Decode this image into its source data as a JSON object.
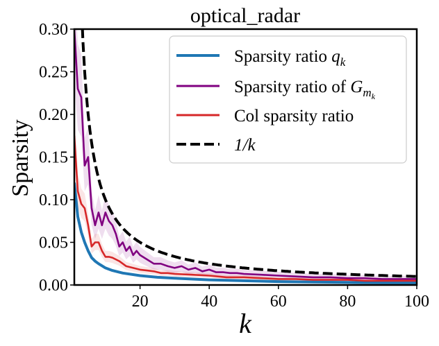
{
  "chart_data": {
    "type": "line",
    "title": "optical_radar",
    "xlabel": "k",
    "ylabel": "Sparsity",
    "xlim": [
      1,
      100
    ],
    "ylim": [
      0,
      0.3
    ],
    "xticks": [
      20,
      40,
      60,
      80,
      100
    ],
    "xtick_labels": [
      "20",
      "40",
      "60",
      "80",
      "100"
    ],
    "yticks": [
      0.0,
      0.05,
      0.1,
      0.15,
      0.2,
      0.25,
      0.3
    ],
    "ytick_labels": [
      "0.00",
      "0.05",
      "0.10",
      "0.15",
      "0.20",
      "0.25",
      "0.30"
    ],
    "grid": false,
    "legend": {
      "placement": "upper-right",
      "entries": [
        {
          "text": "Sparsity ratio ",
          "math": "q",
          "sub": "k"
        },
        {
          "text": "Sparsity ratio of ",
          "math": "G",
          "sub": "m",
          "subsub": "k"
        },
        {
          "text": "Col sparsity ratio"
        },
        {
          "text": "",
          "math": "1/k"
        }
      ]
    },
    "series": [
      {
        "key": "q",
        "color": "#1f77b4",
        "style": "solid",
        "x": [
          1,
          2,
          3,
          4,
          5,
          6,
          7,
          8,
          10,
          12,
          15,
          20,
          25,
          30,
          40,
          50,
          60,
          70,
          80,
          90,
          100
        ],
        "y": [
          0.12,
          0.08,
          0.062,
          0.05,
          0.04,
          0.032,
          0.028,
          0.025,
          0.02,
          0.017,
          0.014,
          0.011,
          0.009,
          0.008,
          0.006,
          0.005,
          0.004,
          0.0035,
          0.003,
          0.0027,
          0.0025
        ]
      },
      {
        "key": "G",
        "color": "#800080",
        "style": "solid",
        "x": [
          1,
          2,
          3,
          4,
          5,
          6,
          7,
          8,
          9,
          10,
          11,
          12,
          13,
          14,
          15,
          16,
          17,
          18,
          19,
          20,
          22,
          24,
          26,
          28,
          30,
          32,
          34,
          36,
          38,
          40,
          42,
          44,
          46,
          48,
          50,
          55,
          60,
          65,
          70,
          75,
          80,
          85,
          90,
          95,
          100
        ],
        "y": [
          0.3,
          0.23,
          0.22,
          0.14,
          0.15,
          0.09,
          0.07,
          0.085,
          0.07,
          0.085,
          0.075,
          0.07,
          0.06,
          0.045,
          0.05,
          0.04,
          0.045,
          0.035,
          0.04,
          0.035,
          0.03,
          0.025,
          0.025,
          0.022,
          0.02,
          0.022,
          0.018,
          0.02,
          0.016,
          0.018,
          0.015,
          0.015,
          0.014,
          0.014,
          0.013,
          0.012,
          0.011,
          0.01,
          0.009,
          0.009,
          0.008,
          0.008,
          0.007,
          0.007,
          0.007
        ]
      },
      {
        "key": "col",
        "color": "#d62728",
        "style": "solid",
        "x": [
          1,
          2,
          3,
          4,
          5,
          6,
          7,
          8,
          9,
          10,
          11,
          12,
          14,
          16,
          18,
          20,
          22,
          24,
          26,
          28,
          30,
          35,
          40,
          45,
          50,
          55,
          60,
          65,
          70,
          75,
          80,
          85,
          90,
          95,
          100
        ],
        "y": [
          0.175,
          0.11,
          0.095,
          0.09,
          0.07,
          0.045,
          0.05,
          0.05,
          0.04,
          0.033,
          0.033,
          0.032,
          0.028,
          0.022,
          0.02,
          0.018,
          0.017,
          0.016,
          0.014,
          0.014,
          0.013,
          0.012,
          0.011,
          0.009,
          0.009,
          0.008,
          0.007,
          0.007,
          0.006,
          0.006,
          0.006,
          0.005,
          0.005,
          0.005,
          0.005
        ]
      },
      {
        "key": "inv",
        "color": "#000000",
        "style": "dashed",
        "function": "1/k"
      }
    ]
  }
}
